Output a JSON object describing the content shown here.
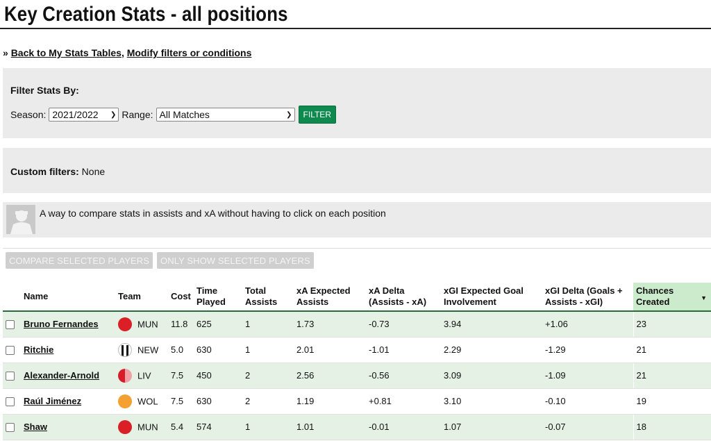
{
  "page": {
    "title": "Key Creation Stats - all positions",
    "links": {
      "prefix": "» ",
      "back": "Back to My Stats Tables",
      "separator": ", ",
      "modify": "Modify filters or conditions"
    }
  },
  "filters": {
    "heading": "Filter Stats By:",
    "season_label": "Season:",
    "season_value": "2021/2022",
    "range_label": "Range:",
    "range_value": "All Matches",
    "filter_button": "FILTER"
  },
  "custom_filters": {
    "label": "Custom filters:",
    "value": " None"
  },
  "description": "A way to compare stats in assists and xA without having to click on each position",
  "actions": {
    "compare": "COMPARE SELECTED PLAYERS",
    "only_show": "ONLY SHOW SELECTED PLAYERS"
  },
  "table": {
    "columns": {
      "name": "Name",
      "team": "Team",
      "cost": "Cost",
      "time_played": "Time Played",
      "total_assists": "Total Assists",
      "xa": "xA Expected Assists",
      "xa_delta": "xA Delta (Assists - xA)",
      "xgi": "xGI Expected Goal Involvement",
      "xgi_delta": "xGI Delta (Goals + Assists - xGI)",
      "chances": "Chances Created"
    },
    "rows": [
      {
        "name": "Bruno Fernandes",
        "team": "MUN",
        "cost": "11.8",
        "time": "625",
        "assists": "1",
        "xa": "1.73",
        "xa_delta": "-0.73",
        "xgi": "3.94",
        "xgi_delta": "+1.06",
        "chances": "23"
      },
      {
        "name": "Ritchie",
        "team": "NEW",
        "cost": "5.0",
        "time": "630",
        "assists": "1",
        "xa": "2.01",
        "xa_delta": "-1.01",
        "xgi": "2.29",
        "xgi_delta": "-1.29",
        "chances": "21"
      },
      {
        "name": "Alexander-Arnold",
        "team": "LIV",
        "cost": "7.5",
        "time": "450",
        "assists": "2",
        "xa": "2.56",
        "xa_delta": "-0.56",
        "xgi": "3.09",
        "xgi_delta": "-1.09",
        "chances": "21"
      },
      {
        "name": "Raúl Jiménez",
        "team": "WOL",
        "cost": "7.5",
        "time": "630",
        "assists": "2",
        "xa": "1.19",
        "xa_delta": "+0.81",
        "xgi": "3.10",
        "xgi_delta": "-0.10",
        "chances": "19"
      },
      {
        "name": "Shaw",
        "team": "MUN",
        "cost": "5.4",
        "time": "574",
        "assists": "1",
        "xa": "1.01",
        "xa_delta": "-0.01",
        "xgi": "1.07",
        "xgi_delta": "-0.07",
        "chances": "18"
      }
    ],
    "sorted_column": "chances",
    "sort_direction": "descending"
  },
  "colors": {
    "accent_green": "#0f8a4f",
    "row_shade": "#e4f1e4",
    "sorted_header": "#ccebcc",
    "mun": "#da1f26",
    "liv": "#d51d29",
    "wol": "#f5a033"
  }
}
